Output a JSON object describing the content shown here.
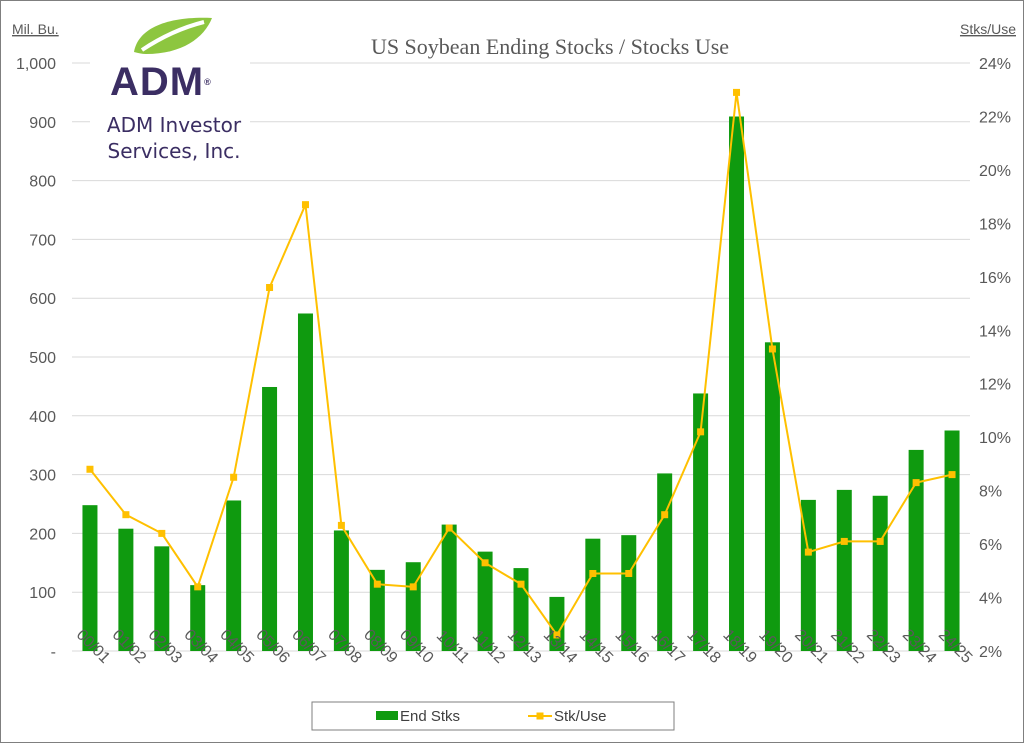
{
  "logo": {
    "brand": "ADM",
    "registered": "®",
    "company_line1": "ADM Investor",
    "company_line2": "Services, Inc."
  },
  "colors": {
    "bars": "#0f9a0f",
    "line": "#ffc000",
    "axis_text": "#595959",
    "grid": "#d9d9d9"
  },
  "chart_data": {
    "type": "bar",
    "title": "US Soybean Ending Stocks / Stocks Use",
    "left_axis_unit": "Mil. Bu.",
    "right_axis_unit": "Stks/Use",
    "categories": [
      "00/01",
      "01/02",
      "02/03",
      "03/04",
      "04/05",
      "05/06",
      "06/07",
      "07/08",
      "08/09",
      "09/10",
      "10/11",
      "11/12",
      "12/13",
      "13/14",
      "14/15",
      "15/16",
      "16/17",
      "17/18",
      "18/19",
      "19/20",
      "20/21",
      "21/22",
      "22/23",
      "23/24",
      "24/25"
    ],
    "ylim": [
      0,
      1000
    ],
    "y_ticks": [
      "-",
      "100",
      "200",
      "300",
      "400",
      "500",
      "600",
      "700",
      "800",
      "900",
      "1,000"
    ],
    "y2lim": [
      2,
      24
    ],
    "y2_ticks": [
      "2%",
      "4%",
      "6%",
      "8%",
      "10%",
      "12%",
      "14%",
      "16%",
      "18%",
      "20%",
      "22%",
      "24%"
    ],
    "grid": true,
    "legend_position": "bottom",
    "series": [
      {
        "name": "End Stks",
        "kind": "bar",
        "axis": "left",
        "values": [
          248,
          208,
          178,
          112,
          256,
          449,
          574,
          205,
          138,
          151,
          215,
          169,
          141,
          92,
          191,
          197,
          302,
          438,
          909,
          525,
          257,
          274,
          264,
          342,
          375
        ]
      },
      {
        "name": "Stk/Use",
        "kind": "line",
        "axis": "right",
        "values": [
          8.8,
          7.1,
          6.4,
          4.4,
          8.5,
          15.6,
          18.7,
          6.7,
          4.5,
          4.4,
          6.6,
          5.3,
          4.5,
          2.6,
          4.9,
          4.9,
          7.1,
          10.2,
          22.9,
          13.3,
          5.7,
          6.1,
          6.1,
          8.3,
          8.6
        ]
      }
    ]
  }
}
